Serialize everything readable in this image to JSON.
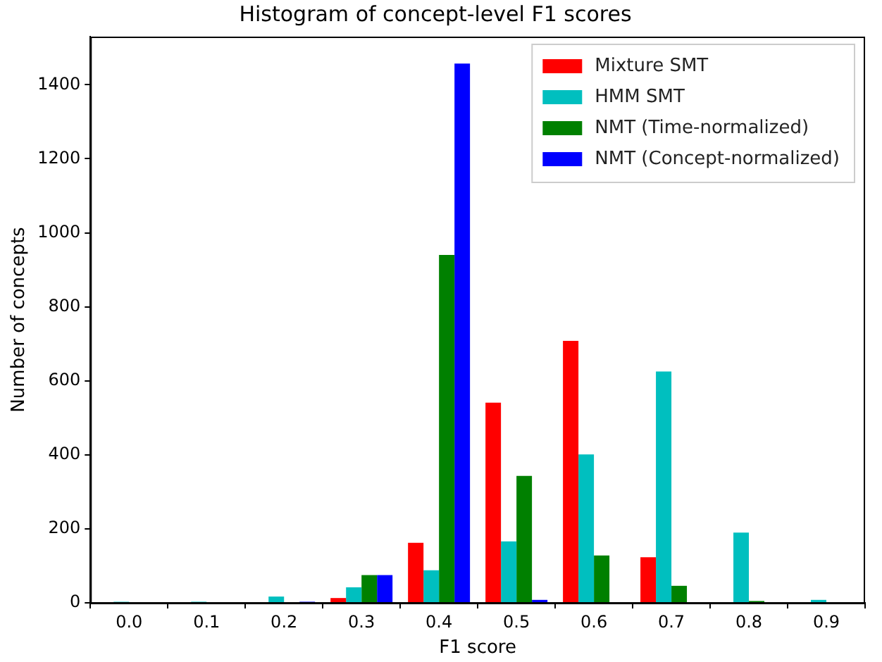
{
  "chart_data": {
    "type": "bar",
    "title": "Histogram of concept-level F1 scores",
    "xlabel": "F1 score",
    "ylabel": "Number of concepts",
    "categories": [
      "0.0",
      "0.1",
      "0.2",
      "0.3",
      "0.4",
      "0.5",
      "0.6",
      "0.7",
      "0.8",
      "0.9"
    ],
    "series": [
      {
        "name": "Mixture SMT",
        "color": "#ff0000",
        "values": [
          0,
          0,
          0,
          13,
          162,
          541,
          708,
          123,
          0,
          0
        ]
      },
      {
        "name": "HMM SMT",
        "color": "#00bfbf",
        "values": [
          3,
          3,
          17,
          42,
          88,
          166,
          401,
          625,
          190,
          8
        ]
      },
      {
        "name": "NMT (Time-normalized)",
        "color": "#008000",
        "values": [
          0,
          0,
          0,
          75,
          940,
          343,
          128,
          46,
          5,
          0
        ]
      },
      {
        "name": "NMT (Concept-normalized)",
        "color": "#0000ff",
        "values": [
          0,
          0,
          3,
          75,
          1457,
          8,
          0,
          0,
          0,
          0
        ]
      }
    ],
    "ylim": [
      0,
      1530
    ],
    "yticks": [
      0,
      200,
      400,
      600,
      800,
      1000,
      1200,
      1400
    ],
    "grid": false,
    "legend": "top right"
  }
}
